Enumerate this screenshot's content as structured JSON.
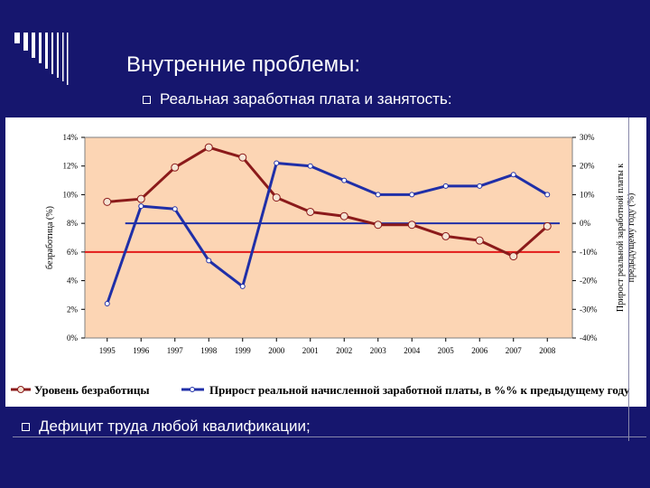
{
  "slide": {
    "title": "Внутренние проблемы:",
    "bullet_1": "Реальная заработная плата и занятость:",
    "bullet_2": "Дефицит труда любой квалификации;"
  },
  "colors": {
    "background": "#16166e",
    "plot_area": "#fcd5b4",
    "unemployment_line": "#8b1a1a",
    "wage_line": "#1f2fa8",
    "unemployment_ref": "#e31a1a",
    "wage_ref": "#1f2fa8"
  },
  "chart_data": {
    "type": "line",
    "categories": [
      "1995",
      "1996",
      "1997",
      "1998",
      "1999",
      "2000",
      "2001",
      "2002",
      "2003",
      "2004",
      "2005",
      "2006",
      "2007",
      "2008"
    ],
    "series": [
      {
        "name": "Уровень безработицы",
        "axis": "left",
        "values": [
          9.5,
          9.7,
          11.9,
          13.3,
          12.6,
          9.8,
          8.8,
          8.5,
          7.9,
          7.9,
          7.1,
          6.8,
          5.7,
          7.8
        ]
      },
      {
        "name": "Прирост реальной начисленной заработной платы, в %% к предыдущему году",
        "axis": "right",
        "values": [
          -28,
          6,
          5,
          -13,
          -22,
          21,
          20,
          15,
          10,
          10,
          13,
          13,
          17,
          10
        ]
      }
    ],
    "reference_lines": [
      {
        "axis": "left",
        "value": 6,
        "color": "#e31a1a"
      },
      {
        "axis": "right",
        "value": 0,
        "color": "#1f2fa8"
      }
    ],
    "y_left": {
      "label": "безработица (%)",
      "ylim": [
        0,
        14
      ],
      "ticks": [
        "0%",
        "2%",
        "4%",
        "6%",
        "8%",
        "10%",
        "12%",
        "14%"
      ]
    },
    "y_right": {
      "label_line1": "Прирост реальной заработной платы к",
      "label_line2": "предыдущему году (%)",
      "ylim": [
        -40,
        30
      ],
      "ticks": [
        "-40%",
        "-30%",
        "-20%",
        "-10%",
        "0%",
        "10%",
        "20%",
        "30%"
      ]
    },
    "grid": false,
    "legend_position": "bottom"
  }
}
